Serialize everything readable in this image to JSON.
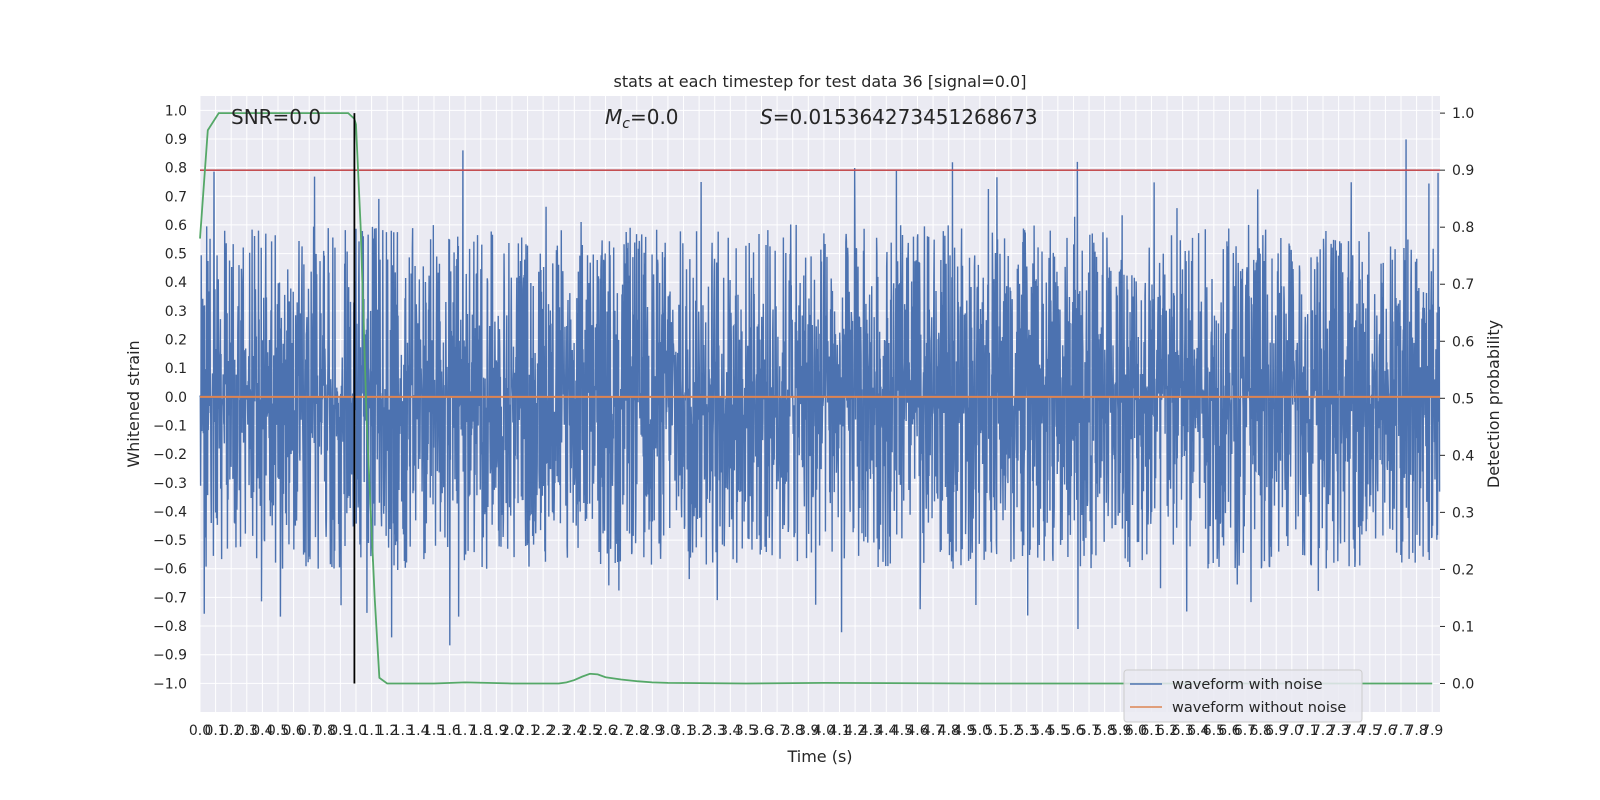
{
  "chart_data": {
    "type": "line",
    "title": "stats at each timestep for test data 36 [signal=0.0]",
    "xlabel": "Time (s)",
    "ylabel": "Whitened strain",
    "y2label": "Detection probability",
    "annotations": {
      "snr": "SNR=0.0",
      "mc_symbol": "M",
      "mc_sub": "c",
      "mc_value": "=0.0",
      "s_symbol": "S",
      "s_value": "=0.015364273451268673"
    },
    "xlim": [
      0.0,
      7.95
    ],
    "ylim": [
      -1.1,
      1.05
    ],
    "y2lim": [
      -0.05,
      1.03
    ],
    "x_ticks": [
      0.0,
      0.1,
      0.2,
      0.3,
      0.4,
      0.5,
      0.6,
      0.7,
      0.8,
      0.9,
      1.0,
      1.1,
      1.2,
      1.3,
      1.4,
      1.5,
      1.6,
      1.7,
      1.8,
      1.9,
      2.0,
      2.1,
      2.2,
      2.3,
      2.4,
      2.5,
      2.6,
      2.7,
      2.8,
      2.9,
      3.0,
      3.1,
      3.2,
      3.3,
      3.4,
      3.5,
      3.6,
      3.7,
      3.8,
      3.9,
      4.0,
      4.1,
      4.2,
      4.3,
      4.4,
      4.5,
      4.6,
      4.7,
      4.8,
      4.9,
      5.0,
      5.1,
      5.2,
      5.3,
      5.4,
      5.5,
      5.6,
      5.7,
      5.8,
      5.9,
      6.0,
      6.1,
      6.2,
      6.3,
      6.4,
      6.5,
      6.6,
      6.7,
      6.8,
      6.9,
      7.0,
      7.1,
      7.2,
      7.3,
      7.4,
      7.5,
      7.6,
      7.7,
      7.8,
      7.9
    ],
    "y_ticks": [
      1.0,
      0.9,
      0.8,
      0.7,
      0.6,
      0.5,
      0.4,
      0.3,
      0.2,
      0.1,
      0.0,
      -0.1,
      -0.2,
      -0.3,
      -0.4,
      -0.5,
      -0.6,
      -0.7,
      -0.8,
      -0.9,
      -1.0
    ],
    "y2_ticks": [
      1.0,
      0.9,
      0.8,
      0.7,
      0.6,
      0.5,
      0.4,
      0.3,
      0.2,
      0.1,
      0.0
    ],
    "grid": true,
    "legend_position": "bottom-right",
    "series": [
      {
        "name": "waveform with noise",
        "color": "#4c72b0",
        "kind": "noise",
        "axis": "left",
        "sample_rate": 512,
        "envelope_max": 0.6,
        "peak_max": 0.95,
        "peak_min": -0.97
      },
      {
        "name": "waveform without noise",
        "color": "#dd8452",
        "axis": "left",
        "x": [
          0.0,
          7.95
        ],
        "y": [
          0.0,
          0.0
        ]
      }
    ],
    "detection_probability": {
      "color": "#55a868",
      "axis": "right",
      "x": [
        0.0,
        0.05,
        0.12,
        0.2,
        0.3,
        0.5,
        0.7,
        0.9,
        0.95,
        0.99,
        1.0,
        1.03,
        1.07,
        1.12,
        1.15,
        1.2,
        1.3,
        1.5,
        1.7,
        2.0,
        2.2,
        2.3,
        2.35,
        2.4,
        2.45,
        2.5,
        2.55,
        2.6,
        2.7,
        2.8,
        2.9,
        3.0,
        3.5,
        4.0,
        5.0,
        6.0,
        7.0,
        7.9
      ],
      "y": [
        0.78,
        0.97,
        1.0,
        1.0,
        1.0,
        1.0,
        1.0,
        1.0,
        1.0,
        0.99,
        0.98,
        0.8,
        0.45,
        0.15,
        0.01,
        0.0,
        0.0,
        0.0,
        0.002,
        0.0,
        0.0,
        0.0,
        0.002,
        0.006,
        0.012,
        0.017,
        0.016,
        0.011,
        0.007,
        0.004,
        0.002,
        0.001,
        0.0,
        0.001,
        0.0,
        0.0,
        0.0,
        0.0
      ]
    },
    "threshold": {
      "color": "#c44e52",
      "axis": "right",
      "value": 0.9
    },
    "marker_time": {
      "color": "#000000",
      "x": 0.99
    }
  }
}
